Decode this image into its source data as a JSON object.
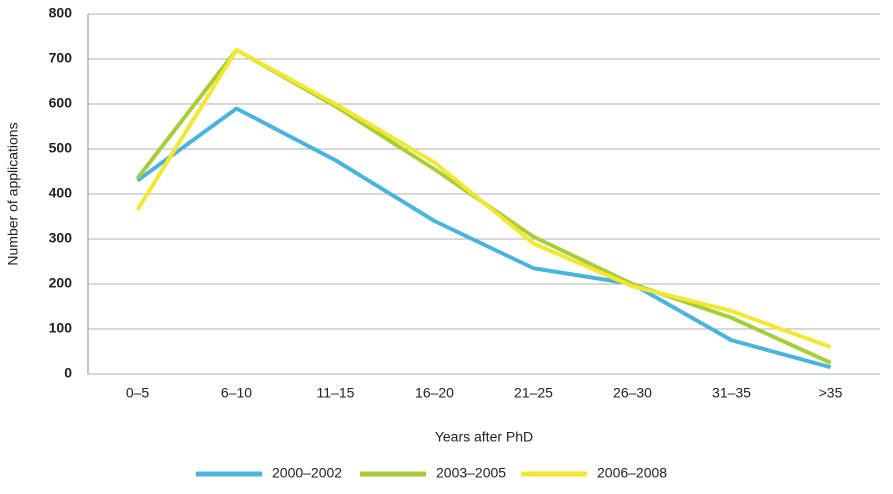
{
  "chart_data": {
    "type": "line",
    "x_label": "Years after PhD",
    "y_label": "Number of applications",
    "categories": [
      "0–5",
      "6–10",
      "11–15",
      "16–20",
      "21–25",
      "26–30",
      "31–35",
      ">35"
    ],
    "series": [
      {
        "name": "2000–2002",
        "color": "#4ab4de",
        "values": [
          430,
          590,
          475,
          340,
          235,
          200,
          75,
          15
        ]
      },
      {
        "name": "2003–2005",
        "color": "#a6cd3a",
        "values": [
          435,
          720,
          595,
          455,
          305,
          200,
          125,
          25
        ]
      },
      {
        "name": "2006–2008",
        "color": "#f2e731",
        "values": [
          365,
          720,
          600,
          470,
          290,
          195,
          140,
          60
        ]
      }
    ],
    "ylim": [
      0,
      800
    ],
    "yticks": [
      0,
      100,
      200,
      300,
      400,
      500,
      600,
      700,
      800
    ],
    "grid": true
  }
}
